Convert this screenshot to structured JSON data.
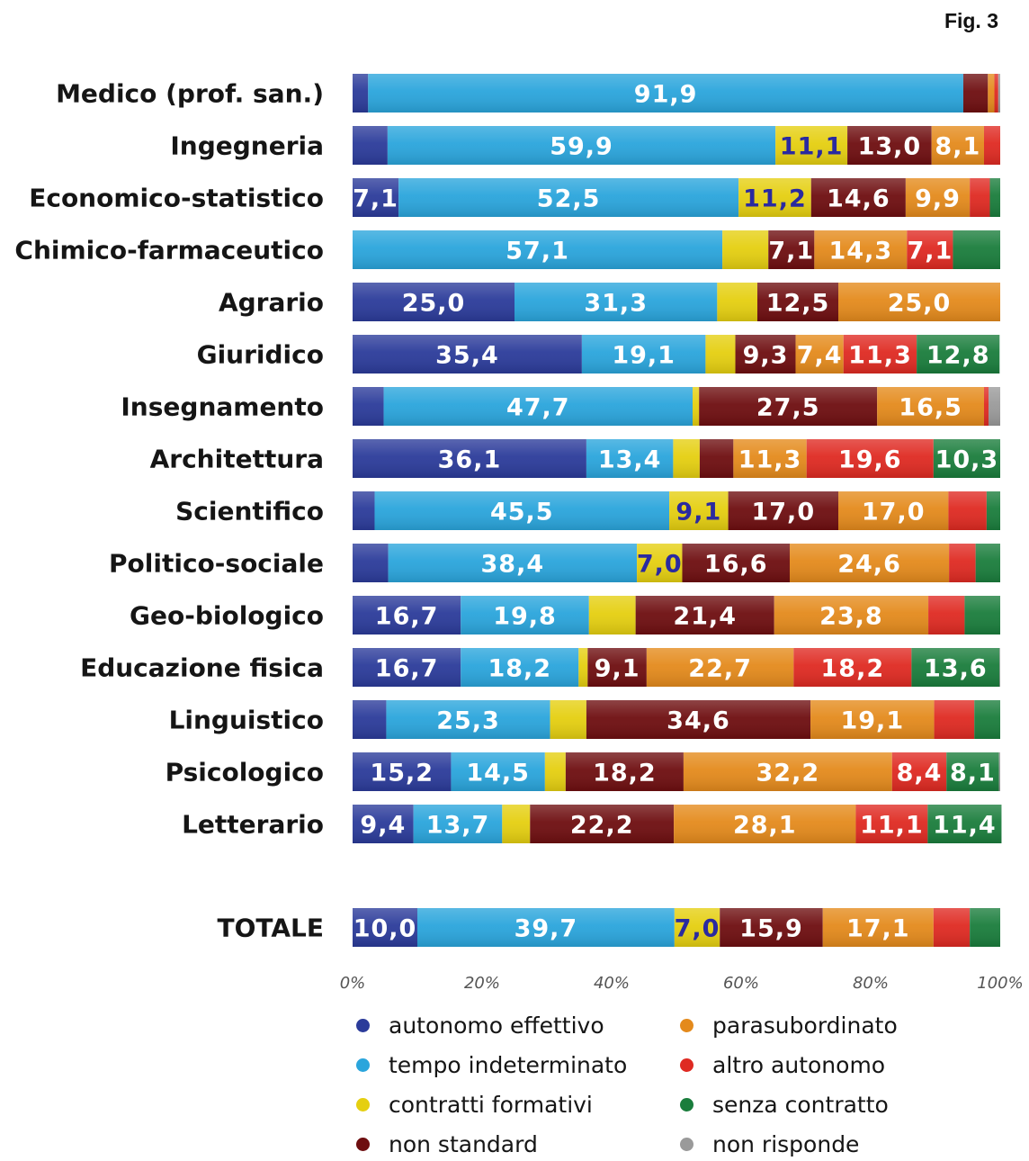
{
  "figure_label": "Fig. 3",
  "chart_data": {
    "type": "bar",
    "orientation": "horizontal",
    "stacked": true,
    "normalized": true,
    "categories": [
      "Medico (prof. san.)",
      "Ingegneria",
      "Economico-statistico",
      "Chimico-farmaceutico",
      "Agrario",
      "Giuridico",
      "Insegnamento",
      "Architettura",
      "Scientifico",
      "Politico-sociale",
      "Geo-biologico",
      "Educazione fisica",
      "Linguistico",
      "Psicologico",
      "Letterario",
      "TOTALE"
    ],
    "series": [
      {
        "name": "autonomo effettivo",
        "color": "#2b3b9a",
        "values": [
          2.4,
          5.4,
          7.1,
          0.0,
          25.0,
          35.4,
          4.8,
          36.1,
          3.4,
          5.5,
          16.7,
          16.7,
          5.2,
          15.2,
          9.4,
          10.0
        ]
      },
      {
        "name": "tempo indeterminato",
        "color": "#2aa5dc",
        "values": [
          91.9,
          59.9,
          52.5,
          57.1,
          31.3,
          19.1,
          47.7,
          13.4,
          45.5,
          38.4,
          19.8,
          18.2,
          25.3,
          14.5,
          13.7,
          39.7
        ]
      },
      {
        "name": "contratti formativi",
        "color": "#e5cf10",
        "values": [
          0.0,
          11.1,
          11.2,
          7.1,
          6.2,
          4.6,
          1.0,
          4.1,
          9.1,
          7.0,
          7.2,
          1.4,
          5.6,
          3.2,
          4.3,
          7.0
        ]
      },
      {
        "name": "non standard",
        "color": "#6e0e10",
        "values": [
          3.8,
          13.0,
          14.6,
          7.1,
          12.5,
          9.3,
          27.5,
          5.2,
          17.0,
          16.6,
          21.4,
          9.1,
          34.6,
          18.2,
          22.2,
          15.9
        ]
      },
      {
        "name": "parasubordinato",
        "color": "#e48a1c",
        "values": [
          1.0,
          8.1,
          9.9,
          14.3,
          25.0,
          7.4,
          16.5,
          11.3,
          17.0,
          24.6,
          23.8,
          22.7,
          19.1,
          32.2,
          28.1,
          17.1
        ]
      },
      {
        "name": "altro autonomo",
        "color": "#df2a22",
        "values": [
          0.6,
          2.5,
          3.1,
          7.1,
          0.0,
          11.3,
          0.7,
          19.6,
          5.9,
          4.1,
          5.6,
          18.2,
          6.2,
          8.4,
          11.1,
          5.6
        ]
      },
      {
        "name": "senza contratto",
        "color": "#1a7d3c",
        "values": [
          0.0,
          0.0,
          1.6,
          7.3,
          0.0,
          12.8,
          0.0,
          10.3,
          2.1,
          3.8,
          5.5,
          13.6,
          4.0,
          8.1,
          11.4,
          4.7
        ]
      },
      {
        "name": "non risponde",
        "color": "#9a9a9a",
        "values": [
          0.3,
          0.0,
          0.0,
          0.0,
          0.0,
          0.0,
          1.8,
          0.0,
          0.0,
          0.0,
          0.0,
          0.1,
          0.0,
          0.2,
          0.0,
          0.0
        ]
      }
    ],
    "data_labels": [
      [
        null,
        "91,9",
        null,
        null,
        null,
        null,
        null,
        null
      ],
      [
        null,
        "59,9",
        "11,1",
        "13,0",
        "8,1",
        null,
        null,
        null
      ],
      [
        "7,1",
        "52,5",
        "11,2",
        "14,6",
        "9,9",
        null,
        null,
        null
      ],
      [
        null,
        "57,1",
        null,
        "7,1",
        "14,3",
        "7,1",
        null,
        null
      ],
      [
        "25,0",
        "31,3",
        null,
        "12,5",
        "25,0",
        null,
        null,
        null
      ],
      [
        "35,4",
        "19,1",
        null,
        "9,3",
        "7,4",
        "11,3",
        "12,8",
        null
      ],
      [
        null,
        "47,7",
        null,
        "27,5",
        "16,5",
        null,
        null,
        null
      ],
      [
        "36,1",
        "13,4",
        null,
        null,
        "11,3",
        "19,6",
        "10,3",
        null
      ],
      [
        null,
        "45,5",
        "9,1",
        "17,0",
        "17,0",
        null,
        null,
        null
      ],
      [
        null,
        "38,4",
        "7,0",
        "16,6",
        "24,6",
        null,
        null,
        null
      ],
      [
        "16,7",
        "19,8",
        null,
        "21,4",
        "23,8",
        null,
        null,
        null
      ],
      [
        "16,7",
        "18,2",
        null,
        "9,1",
        "22,7",
        "18,2",
        "13,6",
        null
      ],
      [
        null,
        "25,3",
        null,
        "34,6",
        "19,1",
        null,
        null,
        null
      ],
      [
        "15,2",
        "14,5",
        null,
        "18,2",
        "32,2",
        "8,4",
        "8,1",
        null
      ],
      [
        "9,4",
        "13,7",
        null,
        "22,2",
        "28,1",
        "11,1",
        "11,4",
        null
      ],
      [
        "10,0",
        "39,7",
        "7,0",
        "15,9",
        "17,1",
        null,
        null,
        null
      ]
    ],
    "xlim": [
      0,
      100
    ],
    "x_ticks": [
      "0%",
      "20%",
      "40%",
      "60%",
      "80%",
      "100%"
    ],
    "legend_position": "bottom",
    "grid": false
  }
}
